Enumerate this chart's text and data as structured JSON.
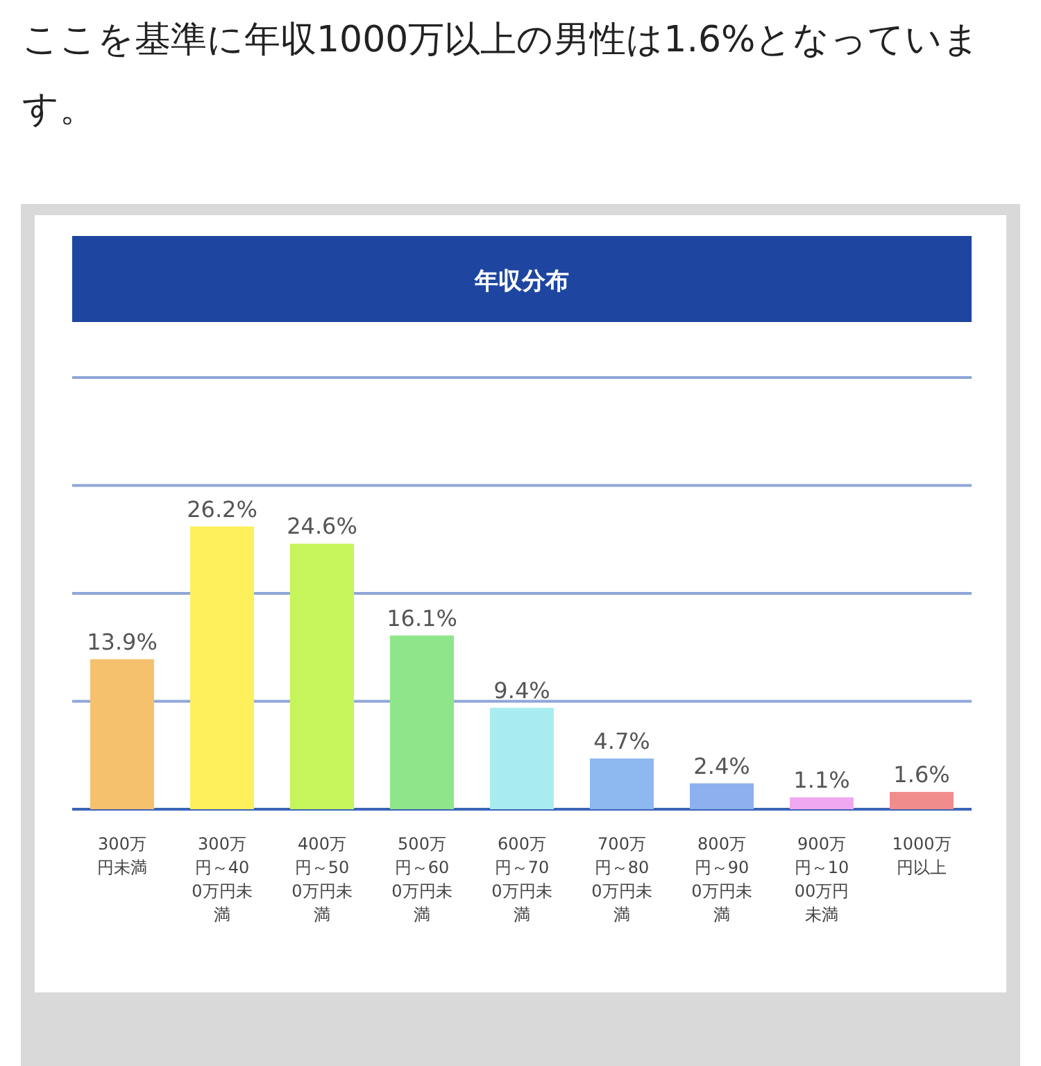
{
  "chart_data": {
    "type": "bar",
    "title": "年収分布",
    "annotations": [
      "ここを基準に年収1000万以上の男性は1.6%となっています。"
    ],
    "categories": [
      "300万円未満",
      "300万円～400万円未満",
      "400万円～500万円未満",
      "500万円～600万円未満",
      "600万円～700万円未満",
      "700万円～800万円未満",
      "800万円～900万円未満",
      "900万円～1000万円未満",
      "1000万円以上"
    ],
    "values": [
      13.9,
      26.2,
      24.6,
      16.1,
      9.4,
      4.7,
      2.4,
      1.1,
      1.6
    ],
    "value_labels": [
      "13.9%",
      "26.2%",
      "24.6%",
      "16.1%",
      "9.4%",
      "4.7%",
      "2.4%",
      "1.1%",
      "1.6%"
    ],
    "colors": [
      "#f5c16c",
      "#fdf05a",
      "#c5f55a",
      "#8fe68a",
      "#a8ecf0",
      "#8db8f0",
      "#8db0ee",
      "#f0a8f0",
      "#f08c8c"
    ],
    "ylim": [
      0,
      40
    ],
    "yticks": [
      {
        "value": 0,
        "label": null
      },
      {
        "value": 10,
        "label": null
      },
      {
        "value": 20,
        "label": null
      },
      {
        "value": 30,
        "label": null
      },
      {
        "value": 40,
        "label": null
      }
    ],
    "grid": "y"
  }
}
